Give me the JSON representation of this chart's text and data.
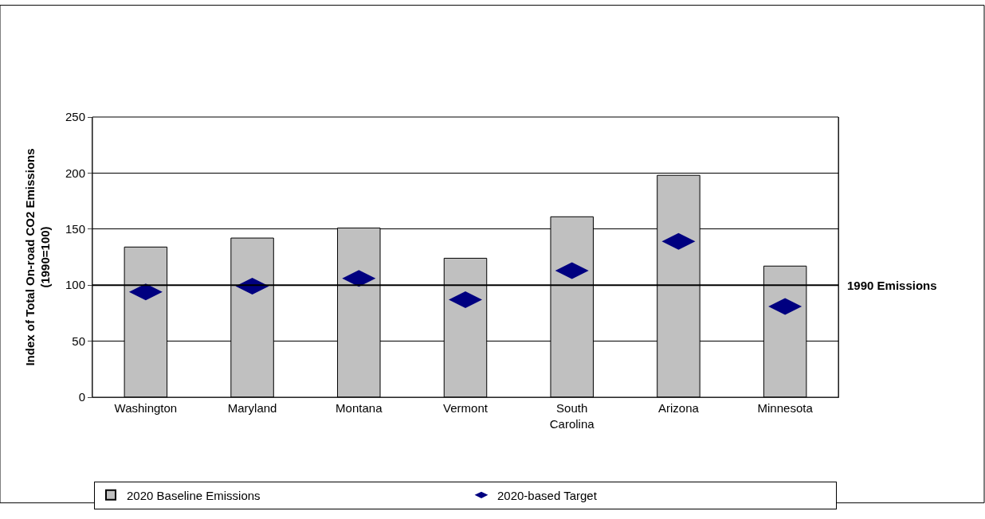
{
  "chart_data": {
    "type": "bar",
    "ylabel": "Index of Total On-road CO2 Emissions\n(1990=100)",
    "categories": [
      "Washington",
      "Maryland",
      "Montana",
      "Vermont",
      "South\nCarolina",
      "Arizona",
      "Minnesota"
    ],
    "series": [
      {
        "name": "2020 Baseline Emissions",
        "color": "#c0c0c0",
        "values": [
          134,
          142,
          151,
          124,
          161,
          198,
          117
        ]
      },
      {
        "name": "2020-based Target",
        "type": "scatter",
        "marker": "diamond",
        "color": "#000080",
        "values": [
          94,
          99,
          106,
          87,
          113,
          139,
          81
        ]
      }
    ],
    "ylim": [
      0,
      250
    ],
    "yticks": [
      0,
      50,
      100,
      150,
      200,
      250
    ],
    "grid": "y",
    "legend": "bottom",
    "ref_lines": [
      {
        "axis": "y",
        "value": 100,
        "label": "1990 Emissions"
      }
    ]
  }
}
